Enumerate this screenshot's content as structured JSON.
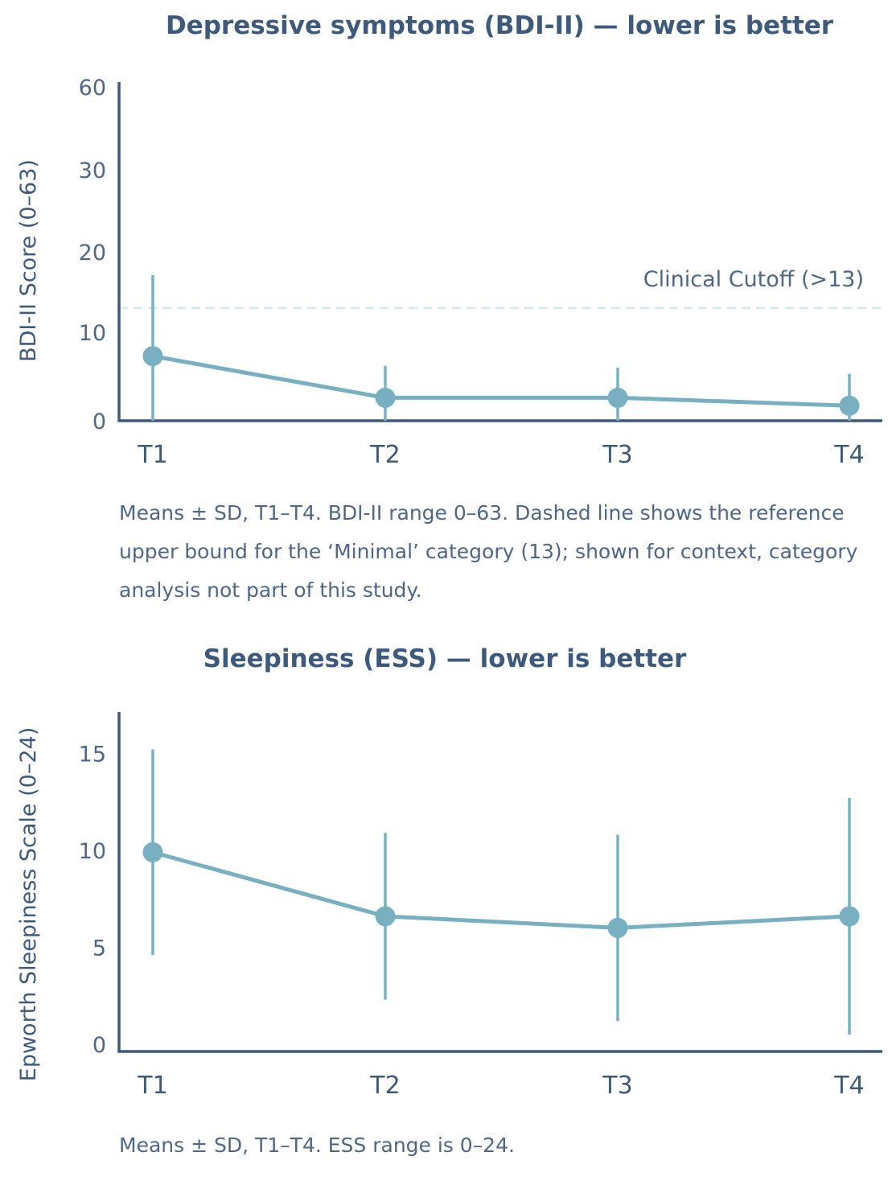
{
  "chart_data": [
    {
      "type": "line",
      "title": "Depressive symptoms (BDI-II) — lower is better",
      "ylabel": "BDI-II Score (0–63)",
      "xlabel": "",
      "categories": [
        "T1",
        "T2",
        "T3",
        "T4"
      ],
      "series": [
        {
          "values": [
            7.3,
            2.6,
            2.6,
            1.7
          ],
          "sd": [
            9.8,
            3.6,
            3.4,
            3.6
          ],
          "color": "#78b0c2"
        }
      ],
      "yticks": [
        {
          "value": 0,
          "label": "0"
        },
        {
          "value": 10,
          "label": "10"
        },
        {
          "value": 20,
          "label": "20"
        },
        {
          "value": 30,
          "label": "30"
        },
        {
          "value": 60,
          "label": "60"
        }
      ],
      "ylim": [
        0,
        60
      ],
      "y_scale": "compressed above 30",
      "reference_line": {
        "value": 13,
        "label": "Clinical Cutoff (>13)",
        "style": "dashed",
        "color": "#d3e8ee"
      },
      "grid": false,
      "caption": "Means ± SD, T1–T4. BDI-II range 0–63. Dashed line shows the reference upper bound for the ‘Minimal’ category (13); shown for context, category analysis not part of this study."
    },
    {
      "type": "line",
      "title": "Sleepiness (ESS) — lower is better",
      "ylabel": "Epworth Sleepiness Scale (0–24)",
      "xlabel": "",
      "categories": [
        "T1",
        "T2",
        "T3",
        "T4"
      ],
      "series": [
        {
          "values": [
            9.9,
            6.6,
            6.0,
            6.6
          ],
          "sd": [
            5.3,
            4.3,
            4.8,
            6.1
          ],
          "color": "#78b0c2"
        }
      ],
      "yticks": [
        {
          "value": 0,
          "label": "0"
        },
        {
          "value": 5,
          "label": "5"
        },
        {
          "value": 10,
          "label": "10"
        },
        {
          "value": 15,
          "label": "15"
        }
      ],
      "ylim": [
        0,
        17
      ],
      "grid": false,
      "caption": "Means ± SD, T1–T4. ESS range is 0–24."
    }
  ]
}
